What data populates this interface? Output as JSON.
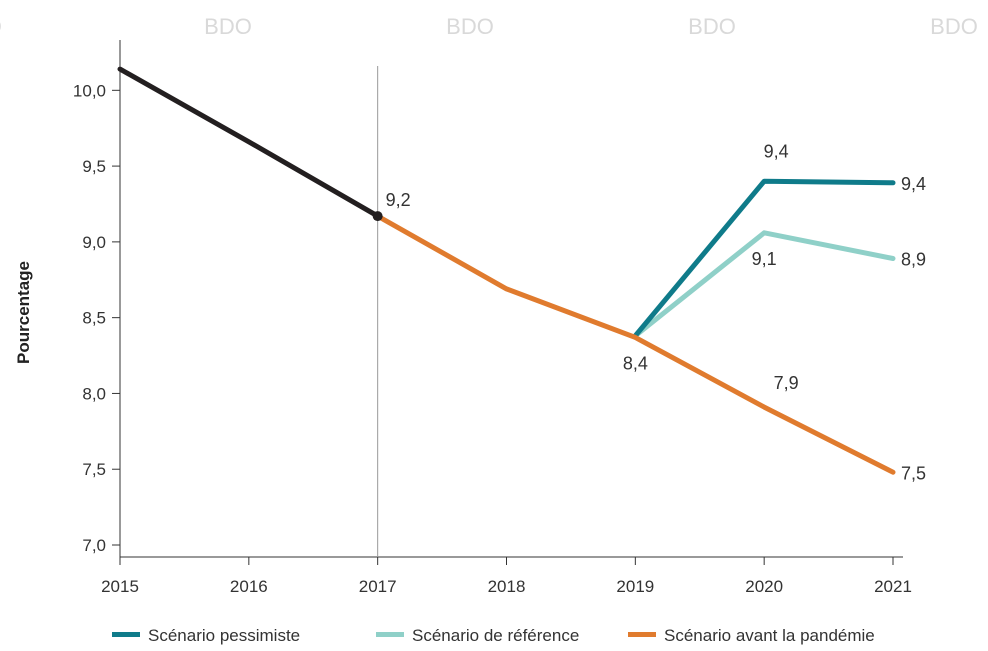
{
  "watermarks": [
    "BDO",
    "BDO",
    "BDO",
    "BDO",
    "BDO"
  ],
  "colors": {
    "historique": "#231f20",
    "pessimiste": "#0f7b8a",
    "reference": "#8fd0c8",
    "avant_pandemie": "#e07b2e",
    "axis": "#333333",
    "divider": "#9a9a9a"
  },
  "chart_data": {
    "type": "line",
    "title": "",
    "xlabel": "",
    "ylabel": "Pourcentage",
    "xlim": [
      2015,
      2021
    ],
    "ylim": [
      7.0,
      10.2
    ],
    "x_ticks": [
      2015,
      2016,
      2017,
      2018,
      2019,
      2020,
      2021
    ],
    "y_ticks": [
      7.0,
      7.5,
      8.0,
      8.5,
      9.0,
      9.5,
      10.0
    ],
    "y_tick_labels": [
      "7,0",
      "7,5",
      "8,0",
      "8,5",
      "9,0",
      "9,5",
      "10,0"
    ],
    "divider_x": 2017,
    "grid": false,
    "legend_position": "bottom",
    "series": [
      {
        "key": "historique",
        "x": [
          2015,
          2016,
          2017
        ],
        "y": [
          10.14,
          9.66,
          9.17
        ],
        "color": "#231f20"
      },
      {
        "key": "reference",
        "name": "Scénario de référence",
        "x": [
          2019,
          2020,
          2021
        ],
        "y": [
          8.38,
          9.06,
          8.89
        ],
        "color": "#8fd0c8"
      },
      {
        "key": "pessimiste",
        "name": "Scénario pessimiste",
        "x": [
          2019,
          2020,
          2021
        ],
        "y": [
          8.38,
          9.4,
          9.39
        ],
        "color": "#0f7b8a"
      },
      {
        "key": "avant_pandemie",
        "name": "Scénario avant la pandémie",
        "x": [
          2017,
          2018,
          2019,
          2020,
          2021
        ],
        "y": [
          9.17,
          8.69,
          8.37,
          7.91,
          7.48
        ],
        "color": "#e07b2e"
      }
    ],
    "legend": [
      {
        "key": "pessimiste",
        "label": "Scénario pessimiste",
        "color": "#0f7b8a"
      },
      {
        "key": "reference",
        "label": "Scénario de référence",
        "color": "#8fd0c8"
      },
      {
        "key": "avant_pandemie",
        "label": "Scénario avant la pandémie",
        "color": "#e07b2e"
      }
    ],
    "annotations": [
      {
        "text": "9,2",
        "x": 2017,
        "y": 9.17,
        "anchor": "upper-right"
      },
      {
        "text": "8,4",
        "x": 2019,
        "y": 8.37,
        "anchor": "below"
      },
      {
        "text": "9,4",
        "x": 2020,
        "y": 9.4,
        "anchor": "above"
      },
      {
        "text": "9,1",
        "x": 2020,
        "y": 9.06,
        "anchor": "below"
      },
      {
        "text": "7,9",
        "x": 2020,
        "y": 7.91,
        "anchor": "above-right"
      },
      {
        "text": "9,4",
        "x": 2021,
        "y": 9.39,
        "anchor": "right"
      },
      {
        "text": "8,9",
        "x": 2021,
        "y": 8.89,
        "anchor": "right"
      },
      {
        "text": "7,5",
        "x": 2021,
        "y": 7.48,
        "anchor": "right"
      }
    ]
  }
}
